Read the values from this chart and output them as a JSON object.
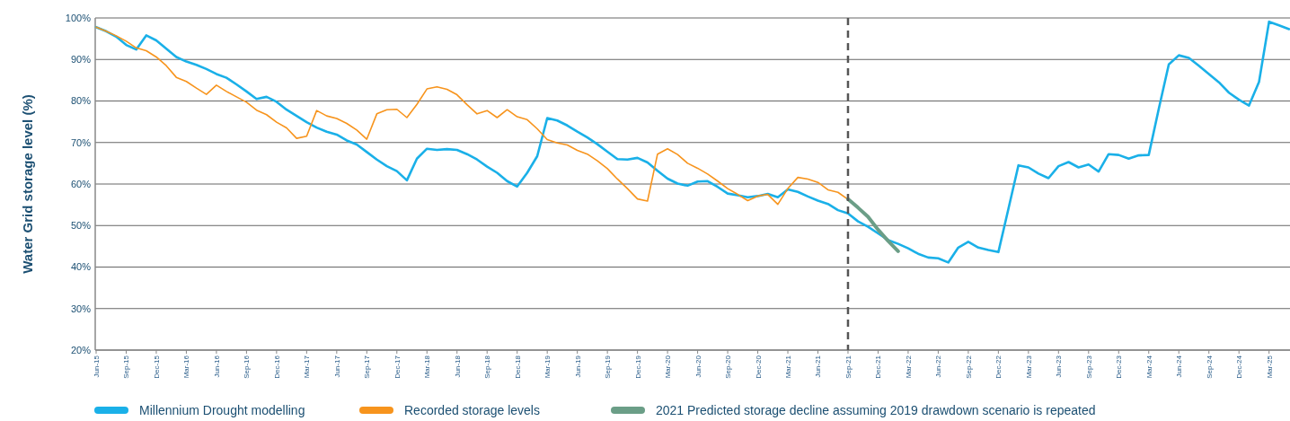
{
  "chart_data": {
    "type": "line",
    "ylabel": "Water Grid storage level (%)",
    "categories": [
      "Jun-15",
      null,
      null,
      "Sep-15",
      null,
      null,
      "Dec-15",
      null,
      null,
      "Mar-16",
      null,
      null,
      "Jun-16",
      null,
      null,
      "Sep-16",
      null,
      null,
      "Dec-16",
      null,
      null,
      "Mar-17",
      null,
      null,
      "Jun-17",
      null,
      null,
      "Sep-17",
      null,
      null,
      "Dec-17",
      null,
      null,
      "Mar-18",
      null,
      null,
      "Jun-18",
      null,
      null,
      "Sep-18",
      null,
      null,
      "Dec-18",
      null,
      null,
      "Mar-19",
      null,
      null,
      "Jun-19",
      null,
      null,
      "Sep-19",
      null,
      null,
      "Dec-19",
      null,
      null,
      "Mar-20",
      null,
      null,
      "Jun-20",
      null,
      null,
      "Sep-20",
      null,
      null,
      "Dec-20",
      null,
      null,
      "Mar-21",
      null,
      null,
      "Jun-21",
      null,
      null,
      "Sep-21",
      null,
      null,
      "Dec-21",
      null,
      null,
      "Mar-22",
      null,
      null,
      "Jun-22",
      null,
      null,
      "Sep-22",
      null,
      null,
      "Dec-22",
      null,
      null,
      "Mar-23",
      null,
      null,
      "Jun-23",
      null,
      null,
      "Sep-23",
      null,
      null,
      "Dec-23",
      null,
      null,
      "Mar-24",
      null,
      null,
      "Jun-24",
      null,
      null,
      "Sep-24",
      null,
      null,
      "Dec-24",
      null,
      null,
      "Mar-25",
      null,
      null
    ],
    "series": [
      {
        "name": "Millennium Drought modelling",
        "color": "#1ab0e8",
        "values": [
          97.8,
          96.8,
          95.5,
          93.5,
          92.4,
          95.8,
          94.6,
          92.6,
          90.6,
          89.5,
          88.7,
          87.7,
          86.5,
          85.6,
          84.0,
          82.3,
          80.5,
          81.0,
          79.8,
          77.9,
          76.4,
          74.9,
          73.6,
          72.6,
          71.9,
          70.5,
          69.5,
          67.7,
          65.9,
          64.3,
          63.1,
          60.9,
          66.1,
          68.5,
          68.2,
          68.4,
          68.2,
          67.2,
          65.9,
          64.2,
          62.7,
          60.7,
          59.4,
          62.7,
          66.7,
          75.9,
          75.3,
          74.1,
          72.6,
          71.2,
          69.6,
          67.8,
          66.0,
          65.9,
          66.3,
          65.2,
          63.2,
          61.3,
          60.1,
          59.6,
          60.6,
          60.7,
          59.3,
          57.7,
          57.3,
          56.8,
          57.1,
          57.6,
          56.8,
          58.7,
          58.1,
          57.0,
          56.0,
          55.2,
          53.7,
          52.9,
          51.0,
          49.7,
          48.1,
          46.5,
          45.6,
          44.5,
          43.2,
          42.3,
          42.1,
          41.1,
          44.7,
          46.1,
          44.7,
          44.1,
          43.6,
          54.0,
          64.5,
          64.0,
          62.5,
          61.4,
          64.3,
          65.3,
          64.0,
          64.7,
          63.0,
          67.2,
          67.0,
          66.1,
          66.9,
          67.0,
          78.1,
          88.8,
          91.0,
          90.4,
          88.5,
          86.5,
          84.5,
          82.0,
          80.3,
          78.9,
          84.6,
          99.1,
          98.2,
          97.3
        ]
      },
      {
        "name": "Recorded storage levels",
        "color": "#f7941d",
        "values": [
          97.8,
          96.8,
          95.7,
          94.4,
          92.8,
          92.1,
          90.6,
          88.5,
          85.7,
          84.7,
          83.1,
          81.6,
          83.8,
          82.3,
          81.0,
          79.7,
          77.8,
          76.7,
          74.9,
          73.5,
          71.0,
          71.5,
          77.7,
          76.4,
          75.8,
          74.6,
          73.0,
          70.8,
          76.9,
          77.9,
          78.0,
          76.0,
          79.2,
          82.9,
          83.4,
          82.8,
          81.5,
          79.1,
          76.9,
          77.7,
          76.0,
          77.9,
          76.2,
          75.5,
          73.3,
          70.7,
          69.9,
          69.4,
          68.1,
          67.2,
          65.6,
          63.7,
          61.2,
          58.9,
          56.4,
          55.9,
          67.2,
          68.5,
          67.1,
          65.0,
          63.8,
          62.4,
          60.7,
          58.9,
          57.5,
          56.0,
          57.1,
          57.5,
          55.1,
          58.9,
          61.6,
          61.2,
          60.4,
          58.6,
          58.0,
          56.3,
          null,
          null,
          null,
          null,
          null,
          null,
          null,
          null,
          null,
          null,
          null,
          null,
          null,
          null,
          null,
          null,
          null,
          null,
          null,
          null,
          null,
          null,
          null,
          null,
          null,
          null,
          null,
          null,
          null,
          null,
          null,
          null,
          null,
          null,
          null,
          null,
          null,
          null,
          null,
          null,
          null,
          null,
          null,
          null
        ]
      },
      {
        "name": "2021 Predicted storage decline assuming 2019 drawdown scenario is repeated",
        "color": "#6b9e87",
        "values": [
          null,
          null,
          null,
          null,
          null,
          null,
          null,
          null,
          null,
          null,
          null,
          null,
          null,
          null,
          null,
          null,
          null,
          null,
          null,
          null,
          null,
          null,
          null,
          null,
          null,
          null,
          null,
          null,
          null,
          null,
          null,
          null,
          null,
          null,
          null,
          null,
          null,
          null,
          null,
          null,
          null,
          null,
          null,
          null,
          null,
          null,
          null,
          null,
          null,
          null,
          null,
          null,
          null,
          null,
          null,
          null,
          null,
          null,
          null,
          null,
          null,
          null,
          null,
          null,
          null,
          null,
          null,
          null,
          null,
          null,
          null,
          null,
          null,
          null,
          null,
          56.4,
          54.3,
          52.1,
          49.0,
          46.3,
          43.8,
          null,
          null,
          null,
          null,
          null,
          null,
          null,
          null,
          null,
          null,
          null,
          null,
          null,
          null,
          null,
          null,
          null,
          null,
          null,
          null,
          null,
          null,
          null,
          null,
          null,
          null,
          null,
          null,
          null,
          null,
          null,
          null,
          null,
          null,
          null,
          null,
          null,
          null,
          null
        ]
      }
    ],
    "ylim": [
      20,
      100
    ],
    "yticks": [
      {
        "value": 20,
        "label": "20%"
      },
      {
        "value": 30,
        "label": "30%"
      },
      {
        "value": 40,
        "label": "40%"
      },
      {
        "value": 50,
        "label": "50%"
      },
      {
        "value": 60,
        "label": "60%"
      },
      {
        "value": 70,
        "label": "70%"
      },
      {
        "value": 80,
        "label": "80%"
      },
      {
        "value": 90,
        "label": "90%"
      },
      {
        "value": 100,
        "label": "100%"
      }
    ],
    "grid": "y",
    "legend": "bottom",
    "marker": "none",
    "line_style": "solid",
    "ref_lines": [
      {
        "axis": "x",
        "value": "Sep-21",
        "color": "#555555",
        "line_style": "dashed"
      }
    ]
  }
}
